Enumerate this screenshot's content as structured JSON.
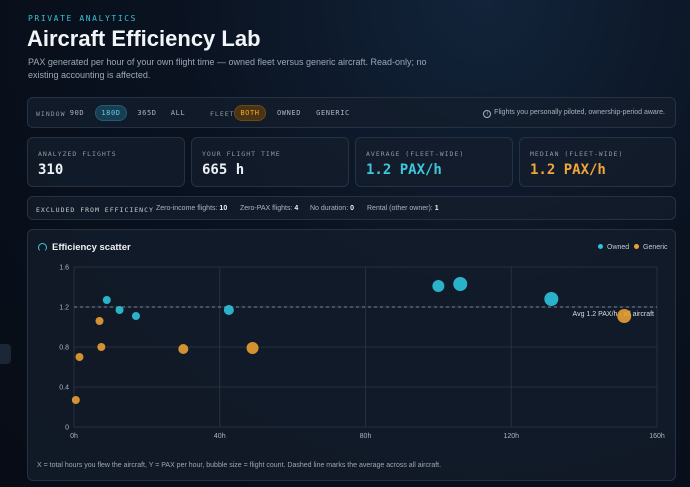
{
  "header": {
    "eyebrow": "PRIVATE ANALYTICS",
    "title": "Aircraft Efficiency Lab",
    "subtitle": "PAX generated per hour of your own flight time — owned fleet versus generic aircraft. Read-only; no existing accounting is affected."
  },
  "filters": {
    "window_label": "WINDOW",
    "window_options": [
      "90D",
      "180D",
      "365D",
      "ALL"
    ],
    "window_selected": "180D",
    "fleet_label": "FLEET",
    "fleet_options": [
      "BOTH",
      "OWNED",
      "GENERIC"
    ],
    "fleet_selected": "BOTH",
    "info_note": "Flights you personally piloted, ownership-period aware."
  },
  "stats": [
    {
      "label": "ANALYZED FLIGHTS",
      "value": "310"
    },
    {
      "label": "YOUR FLIGHT TIME",
      "value": "665 h"
    },
    {
      "label": "AVERAGE (FLEET-WIDE)",
      "value": "1.2 PAX/h"
    },
    {
      "label": "MEDIAN (FLEET-WIDE)",
      "value": "1.2 PAX/h"
    }
  ],
  "excluded": {
    "label": "EXCLUDED FROM EFFICIENCY",
    "items": [
      {
        "name": "Zero-income flights:",
        "count": "10"
      },
      {
        "name": "Zero-PAX flights:",
        "count": "4"
      },
      {
        "name": "No duration:",
        "count": "0"
      },
      {
        "name": "Rental (other owner):",
        "count": "1"
      }
    ]
  },
  "chart_card": {
    "title": "Efficiency scatter",
    "footnote": "X = total hours you flew the aircraft, Y = PAX per hour, bubble size = flight count. Dashed line marks the average across all aircraft."
  },
  "colors": {
    "owned": "#2ec3db",
    "generic": "#e9a032",
    "accent": "#38c3d6"
  },
  "chart_data": {
    "type": "scatter",
    "xlim": [
      0,
      160
    ],
    "ylim": [
      0,
      1.6
    ],
    "x_ticks": [
      "0h",
      "40h",
      "80h",
      "120h",
      "160h"
    ],
    "x_tick_values": [
      0,
      40,
      80,
      120,
      160
    ],
    "y_ticks": [
      "0",
      "0.4",
      "0.8",
      "1.2",
      "1.6"
    ],
    "y_tick_values": [
      0,
      0.4,
      0.8,
      1.2,
      1.6
    ],
    "grid": true,
    "legend_position": "top-right",
    "average_line": {
      "y": 1.2,
      "label": "Avg 1.2 PAX/h · all aircraft"
    },
    "series": [
      {
        "name": "Owned",
        "points": [
          {
            "x": 9,
            "y": 1.27,
            "size": 2
          },
          {
            "x": 12.5,
            "y": 1.17,
            "size": 2
          },
          {
            "x": 17,
            "y": 1.11,
            "size": 2
          },
          {
            "x": 42.5,
            "y": 1.17,
            "size": 3
          },
          {
            "x": 100,
            "y": 1.41,
            "size": 4
          },
          {
            "x": 106,
            "y": 1.43,
            "size": 5
          },
          {
            "x": 131,
            "y": 1.28,
            "size": 5
          }
        ]
      },
      {
        "name": "Generic",
        "points": [
          {
            "x": 0.5,
            "y": 0.27,
            "size": 2
          },
          {
            "x": 1.5,
            "y": 0.7,
            "size": 2
          },
          {
            "x": 7,
            "y": 1.06,
            "size": 2
          },
          {
            "x": 7.5,
            "y": 0.8,
            "size": 2
          },
          {
            "x": 30,
            "y": 0.78,
            "size": 3
          },
          {
            "x": 49,
            "y": 0.79,
            "size": 4
          },
          {
            "x": 151,
            "y": 1.11,
            "size": 5
          }
        ]
      }
    ]
  }
}
